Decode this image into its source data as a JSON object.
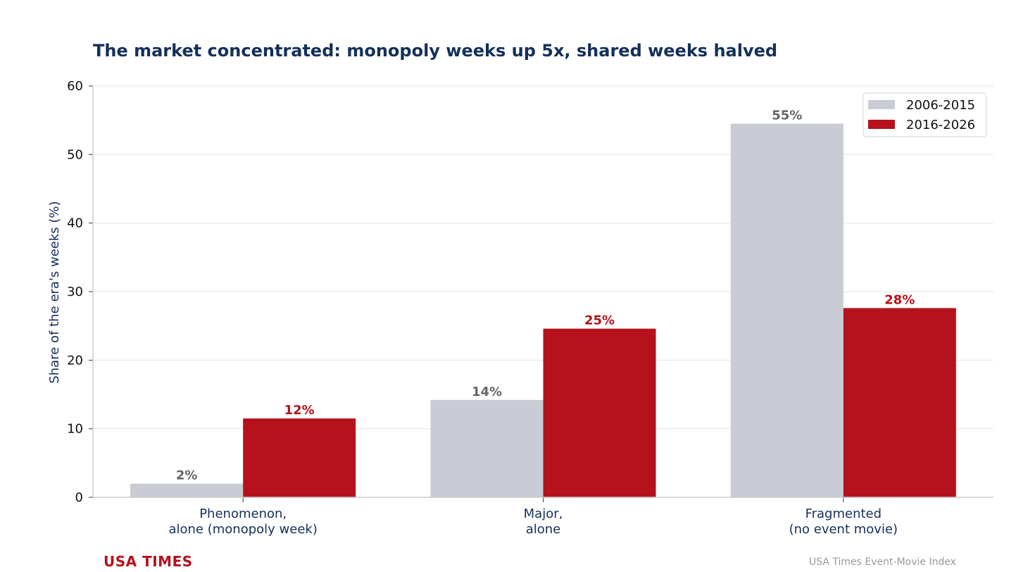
{
  "header": {
    "title": "The market concentrated: monopoly weeks up 5x, shared weeks halved"
  },
  "footer": {
    "brand": "USA TIMES",
    "source": "USA Times Event-Movie Index"
  },
  "colors": {
    "series_a": "#c9ccd4",
    "series_b": "#b5121b",
    "label_a": "#666666",
    "label_b": "#b5121b",
    "title": "#14305a",
    "grid": "#ececec",
    "axis": "#cccccc"
  },
  "chart_data": {
    "type": "bar",
    "title": "The market concentrated: monopoly weeks up 5x, shared weeks halved",
    "xlabel": "",
    "ylabel": "Share of the era's weeks (%)",
    "ylim": [
      0,
      60
    ],
    "yticks": [
      0,
      10,
      20,
      30,
      40,
      50,
      60
    ],
    "grid": true,
    "legend_position": "top-right",
    "categories": [
      [
        "Phenomenon,",
        "alone (monopoly week)"
      ],
      [
        "Major,",
        "alone"
      ],
      [
        "Fragmented",
        "(no event movie)"
      ]
    ],
    "series": [
      {
        "name": "2006-2015",
        "values": [
          2.0,
          14.2,
          54.5
        ],
        "labels": [
          "2%",
          "14%",
          "55%"
        ]
      },
      {
        "name": "2016-2026",
        "values": [
          11.5,
          24.6,
          27.6
        ],
        "labels": [
          "12%",
          "25%",
          "28%"
        ]
      }
    ]
  }
}
